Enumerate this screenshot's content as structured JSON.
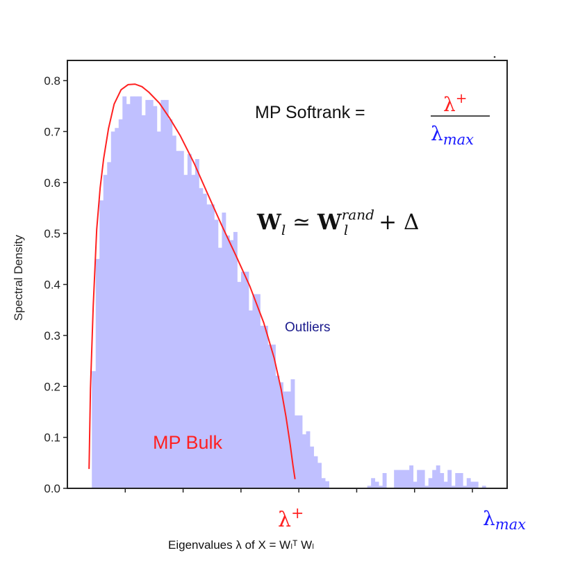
{
  "chart_data": {
    "type": "bar",
    "title": "",
    "xlabel": "Eigenvalues λ of X = Wₗᵀ Wₗ",
    "xlabel_parts": {
      "prefix": "Eigenvalues λ of ",
      "x": "X",
      "eq": " = ",
      "w1": "W",
      "sub1": "l",
      "sup1": "T",
      "w2": "W",
      "sub2": "l"
    },
    "ylabel": "Spectral Density",
    "ylim": [
      0,
      0.82
    ],
    "xlim": [
      0,
      7.6
    ],
    "x_ticks": [
      1,
      2,
      3,
      4,
      5,
      6,
      7
    ],
    "x_tick_labels_shown": false,
    "y_ticks": [
      0.0,
      0.1,
      0.2,
      0.3,
      0.4,
      0.5,
      0.6,
      0.7,
      0.8
    ],
    "y_tick_labels": [
      "0.0",
      "0.1",
      "0.2",
      "0.3",
      "0.4",
      "0.5",
      "0.6",
      "0.7",
      "0.8"
    ],
    "grid": false,
    "histogram": {
      "bin_start": 0.423,
      "bin_width": 0.0661,
      "color": "#c0c0ff",
      "values": [
        0.23,
        0.45,
        0.565,
        0.615,
        0.64,
        0.7,
        0.707,
        0.724,
        0.769,
        0.754,
        0.769,
        0.769,
        0.769,
        0.732,
        0.762,
        0.762,
        0.75,
        0.7,
        0.762,
        0.762,
        0.724,
        0.692,
        0.662,
        0.662,
        0.615,
        0.656,
        0.615,
        0.646,
        0.589,
        0.578,
        0.557,
        0.557,
        0.527,
        0.472,
        0.541,
        0.496,
        0.487,
        0.503,
        0.405,
        0.425,
        0.425,
        0.349,
        0.381,
        0.381,
        0.319,
        0.319,
        0.282,
        0.282,
        0.221,
        0.208,
        0.19,
        0.19,
        0.214,
        0.143,
        0.143,
        0.106,
        0.112,
        0.082,
        0.063,
        0.05,
        0.02,
        0.014,
        0,
        0,
        0,
        0,
        0,
        0,
        0,
        0,
        0,
        0,
        0.005,
        0.02,
        0.013,
        0.005,
        0.03,
        0,
        0,
        0.036,
        0.036,
        0.036,
        0.036,
        0.045,
        0.013,
        0.036,
        0.036,
        0.005,
        0.02,
        0.036,
        0.045,
        0.03,
        0.013,
        0.036,
        0.005,
        0.03,
        0.03,
        0.005,
        0.02,
        0.013,
        0.013,
        0,
        0.005
      ]
    },
    "mp_curve": {
      "color": "#ff2020",
      "x": [
        0.375,
        0.399,
        0.447,
        0.507,
        0.567,
        0.627,
        0.711,
        0.808,
        0.928,
        1.048,
        1.168,
        1.289,
        1.409,
        1.589,
        1.77,
        1.95,
        2.19,
        2.431,
        2.671,
        2.912,
        3.152,
        3.393,
        3.573,
        3.693,
        3.777,
        3.85,
        3.898,
        3.934
      ],
      "y": [
        0.038,
        0.195,
        0.358,
        0.508,
        0.59,
        0.647,
        0.706,
        0.754,
        0.782,
        0.792,
        0.793,
        0.788,
        0.777,
        0.756,
        0.726,
        0.692,
        0.638,
        0.576,
        0.515,
        0.457,
        0.397,
        0.325,
        0.256,
        0.195,
        0.141,
        0.086,
        0.045,
        0.018
      ]
    },
    "annotations": {
      "mp_bulk": {
        "text": "MP Bulk",
        "color": "#ff2020"
      },
      "outliers": {
        "text": "Outliers",
        "color": "#1a1a8c"
      },
      "lambda_plus": {
        "symbol": "λ",
        "sup": "+",
        "color": "#ff2020"
      },
      "lambda_max": {
        "symbol": "λ",
        "sub": "max",
        "color": "#1a1aff"
      },
      "softrank": {
        "label": "MP Softrank = "
      },
      "equation": {
        "w": "W",
        "sub": "l",
        "approx": " ≃ ",
        "w2": "W",
        "sub2": "l",
        "sup2": "rand",
        "plus": " + Δ"
      }
    }
  }
}
